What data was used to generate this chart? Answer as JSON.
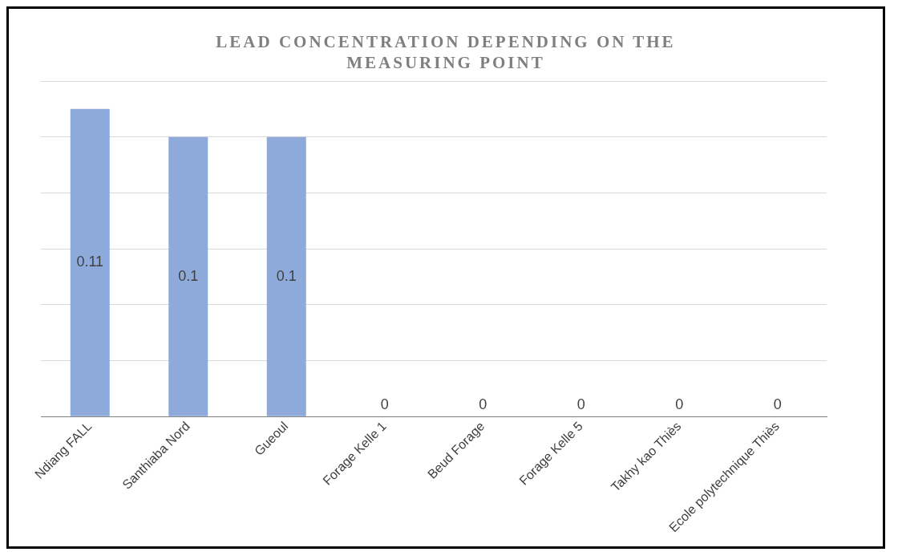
{
  "chart_data": {
    "type": "bar",
    "title": "LEAD CONCENTRATION DEPENDING ON THE MEASURING POINT",
    "categories": [
      "Ndiang FALL",
      "Santhiaba Nord",
      "Gueoul",
      "Forage Kelle 1",
      "Beud Forage",
      "Forage Kelle 5",
      "Takhy kao Thiès",
      "Ecole polytechnique Thiès"
    ],
    "values": [
      0.11,
      0.1,
      0.1,
      0,
      0,
      0,
      0,
      0
    ],
    "color": "#8eaadb",
    "data_labels": true,
    "relative": false,
    "ylim": [
      0,
      0.12
    ],
    "yticks": [
      {
        "value": 0,
        "label": null
      },
      {
        "value": 0.02,
        "label": null
      },
      {
        "value": 0.04,
        "label": null
      },
      {
        "value": 0.06,
        "label": null
      },
      {
        "value": 0.08,
        "label": null
      },
      {
        "value": 0.1,
        "label": null
      },
      {
        "value": 0.12,
        "label": null
      }
    ],
    "grid": "y",
    "tick_labels": "x",
    "legend": false
  }
}
